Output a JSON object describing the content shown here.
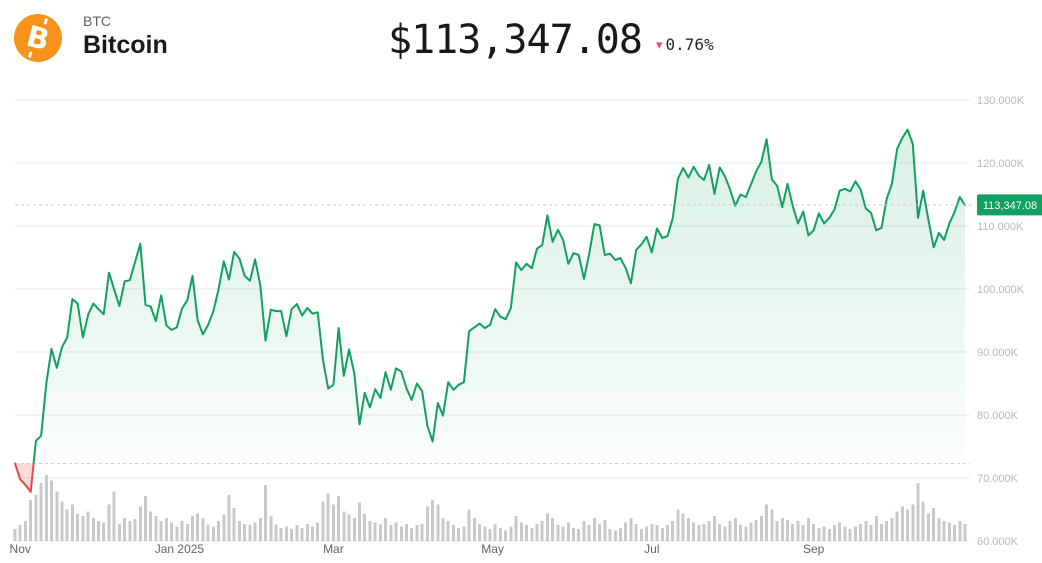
{
  "header": {
    "symbol": "BTC",
    "name": "Bitcoin",
    "price": "$113,347.08",
    "change_arrow": "▾",
    "change_pct": "0.76%",
    "change_dir": "down",
    "logo_glyph": "B"
  },
  "colors": {
    "accent_green": "#12a05f",
    "accent_red": "#df4b4c",
    "fill_red": "rgba(226,80,80,0.20)",
    "grid": "#e7e9ea",
    "dashed": "#c9ced3",
    "y_label": "#b4bac0",
    "x_label": "#5f666d",
    "volume": "#c7cacd",
    "badge_bg": "#12a05f",
    "badge_text": "#ffffff",
    "logo": "#f7931a"
  },
  "chart_data": {
    "type": "area",
    "title": "Bitcoin price, 1 year, baseline-compare area chart with volume",
    "unit": "thousand USD",
    "grid": true,
    "y_axis": {
      "min": 60,
      "max": 130,
      "step": 10
    },
    "y_labels": [
      {
        "label": "130.000K",
        "value": 130
      },
      {
        "label": "120.000K",
        "value": 120
      },
      {
        "label": "110.000K",
        "value": 110
      },
      {
        "label": "100.000K",
        "value": 100
      },
      {
        "label": "90.000K",
        "value": 90
      },
      {
        "label": "80.000K",
        "value": 80
      },
      {
        "label": "70.000K",
        "value": 70
      },
      {
        "label": "60.000K",
        "value": 60
      }
    ],
    "x_ticks": [
      {
        "label": "Nov",
        "index": 1
      },
      {
        "label": "Jan 2025",
        "index": 31.5
      },
      {
        "label": "Mar",
        "index": 61
      },
      {
        "label": "May",
        "index": 91.5
      },
      {
        "label": "Jul",
        "index": 122
      },
      {
        "label": "Sep",
        "index": 153
      }
    ],
    "baseline_value": 72.3,
    "last_price_value": 113.35,
    "last_price_label": "113,347.08",
    "prices": [
      72.3,
      69.8,
      68.9,
      67.8,
      75.9,
      76.7,
      85.0,
      90.5,
      87.5,
      90.8,
      92.3,
      98.4,
      97.7,
      92.3,
      95.9,
      97.7,
      96.8,
      96.0,
      102.6,
      99.9,
      97.3,
      101.2,
      101.4,
      104.3,
      107.2,
      97.5,
      97.2,
      94.9,
      99.0,
      94.2,
      93.5,
      93.9,
      96.9,
      98.2,
      102.1,
      95.0,
      92.8,
      94.3,
      96.5,
      100.0,
      104.4,
      101.5,
      105.9,
      104.8,
      102.1,
      101.3,
      104.7,
      100.6,
      91.8,
      96.7,
      96.5,
      96.5,
      92.5,
      96.8,
      97.6,
      95.8,
      97.0,
      96.1,
      96.3,
      88.7,
      84.2,
      84.8,
      93.8,
      86.2,
      90.4,
      86.6,
      78.5,
      83.5,
      81.2,
      84.1,
      82.7,
      86.8,
      84.0,
      87.4,
      86.9,
      84.2,
      82.4,
      85.0,
      83.8,
      78.3,
      75.8,
      81.9,
      79.9,
      85.2,
      84.0,
      84.8,
      85.2,
      93.3,
      93.9,
      94.5,
      93.8,
      94.3,
      96.8,
      95.6,
      95.2,
      97.0,
      104.2,
      103.0,
      104.0,
      103.3,
      106.4,
      107.0,
      111.7,
      107.5,
      109.4,
      107.8,
      104.0,
      105.7,
      105.4,
      101.6,
      105.6,
      110.3,
      110.1,
      105.4,
      105.6,
      104.6,
      104.9,
      103.3,
      100.9,
      106.2,
      107.1,
      108.3,
      105.8,
      109.6,
      108.1,
      108.4,
      111.2,
      117.5,
      119.2,
      117.7,
      119.4,
      118.0,
      117.3,
      119.7,
      115.1,
      119.3,
      117.9,
      115.8,
      113.2,
      115.0,
      114.6,
      116.6,
      118.7,
      120.2,
      123.8,
      117.4,
      116.4,
      113.0,
      116.7,
      113.2,
      110.4,
      112.3,
      108.5,
      109.3,
      112.0,
      110.4,
      111.3,
      112.6,
      115.6,
      115.9,
      115.5,
      117.1,
      115.8,
      112.8,
      112.1,
      109.3,
      109.7,
      114.3,
      116.7,
      122.2,
      124.0,
      125.3,
      123.0,
      111.3,
      115.6,
      110.9,
      106.6,
      108.9,
      107.8,
      110.4,
      112.2,
      114.6,
      113.3
    ],
    "volumes": [
      18,
      24,
      30,
      62,
      70,
      88,
      100,
      92,
      75,
      60,
      48,
      55,
      42,
      38,
      45,
      35,
      30,
      28,
      55,
      75,
      26,
      35,
      30,
      33,
      52,
      68,
      45,
      38,
      30,
      35,
      28,
      22,
      30,
      26,
      38,
      42,
      35,
      25,
      22,
      30,
      40,
      70,
      50,
      30,
      26,
      24,
      28,
      35,
      85,
      38,
      25,
      20,
      22,
      18,
      24,
      20,
      26,
      22,
      28,
      60,
      72,
      55,
      68,
      45,
      40,
      35,
      58,
      42,
      30,
      28,
      25,
      35,
      24,
      28,
      22,
      26,
      20,
      24,
      26,
      52,
      62,
      55,
      35,
      30,
      24,
      20,
      22,
      48,
      35,
      26,
      22,
      18,
      26,
      20,
      16,
      22,
      38,
      28,
      24,
      20,
      26,
      30,
      42,
      35,
      24,
      22,
      28,
      20,
      18,
      30,
      24,
      35,
      26,
      32,
      18,
      16,
      20,
      28,
      35,
      26,
      18,
      22,
      26,
      24,
      20,
      24,
      30,
      48,
      42,
      35,
      28,
      24,
      26,
      30,
      38,
      26,
      22,
      30,
      35,
      24,
      22,
      28,
      32,
      38,
      55,
      48,
      30,
      35,
      32,
      26,
      30,
      24,
      35,
      26,
      20,
      22,
      18,
      24,
      28,
      22,
      18,
      22,
      26,
      30,
      24,
      38,
      26,
      30,
      35,
      45,
      52,
      48,
      55,
      88,
      60,
      42,
      50,
      35,
      30,
      28,
      24,
      30,
      26
    ]
  }
}
